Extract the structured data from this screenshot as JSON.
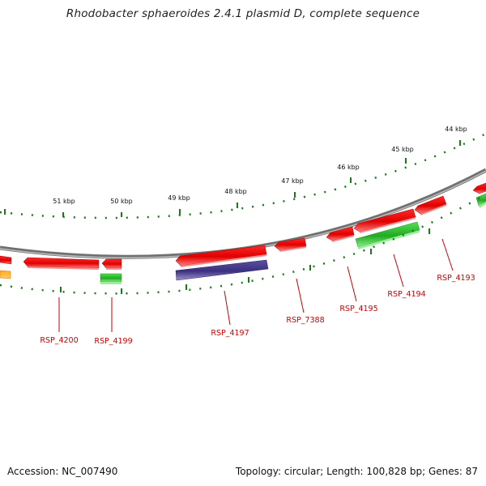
{
  "title": "Rhodobacter sphaeroides 2.4.1 plasmid D, complete sequence",
  "scale_labels": [
    "44 kbp",
    "45 kbp",
    "46 kbp",
    "47 kbp",
    "48 kbp",
    "49 kbp",
    "50 kbp",
    "51 kbp"
  ],
  "genes": [
    "RSP_4193",
    "RSP_4194",
    "RSP_4195",
    "RSP_7388",
    "RSP_4197",
    "RSP_4199",
    "RSP_4200"
  ],
  "footer": {
    "accession": "Accession: NC_007490",
    "summary": "Topology: circular; Length: 100,828 bp; Genes: 87"
  },
  "colors": {
    "forward_gene": "#ff0000",
    "rna_green": "#33cc33",
    "purple_feature": "#4a3f8c",
    "orange_feature": "#ff9900",
    "backbone": "#808080",
    "scale_ticks": "#1a7a1a",
    "label_text": "#cc0000"
  }
}
